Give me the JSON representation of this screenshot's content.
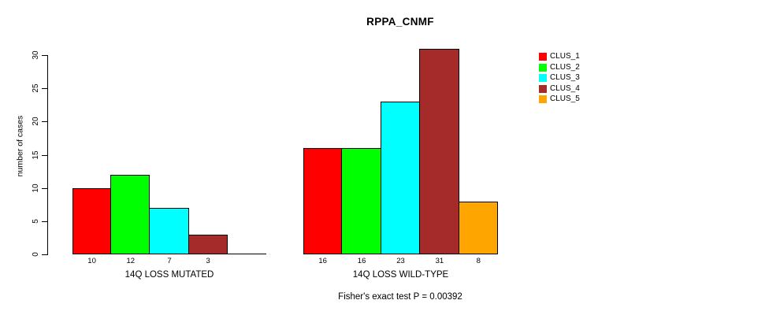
{
  "title": "RPPA_CNMF",
  "chart_data": {
    "type": "bar",
    "title": "RPPA_CNMF",
    "ylabel": "number of cases",
    "ylim": [
      0,
      30
    ],
    "yticks": [
      0,
      5,
      10,
      15,
      20,
      25,
      30
    ],
    "grid": false,
    "legend": {
      "position": "right",
      "entries": [
        {
          "label": "CLUS_1",
          "color": "#FF0000"
        },
        {
          "label": "CLUS_2",
          "color": "#00FF00"
        },
        {
          "label": "CLUS_3",
          "color": "#00FFFF"
        },
        {
          "label": "CLUS_4",
          "color": "#A52A2A"
        },
        {
          "label": "CLUS_5",
          "color": "#FFA500"
        }
      ]
    },
    "groups": [
      {
        "label": "14Q LOSS MUTATED",
        "categories": [
          "CLUS_1",
          "CLUS_2",
          "CLUS_3",
          "CLUS_4"
        ],
        "values": [
          10,
          12,
          7,
          3
        ]
      },
      {
        "label": "14Q LOSS WILD-TYPE",
        "categories": [
          "CLUS_1",
          "CLUS_2",
          "CLUS_3",
          "CLUS_4",
          "CLUS_5"
        ],
        "values": [
          16,
          16,
          23,
          31,
          8
        ]
      }
    ],
    "footnote": "Fisher's exact test P = 0.00392"
  },
  "colors": {
    "background": "#FFFFFF",
    "axis": "#000000",
    "text": "#000000",
    "bar_border": "#000000"
  }
}
